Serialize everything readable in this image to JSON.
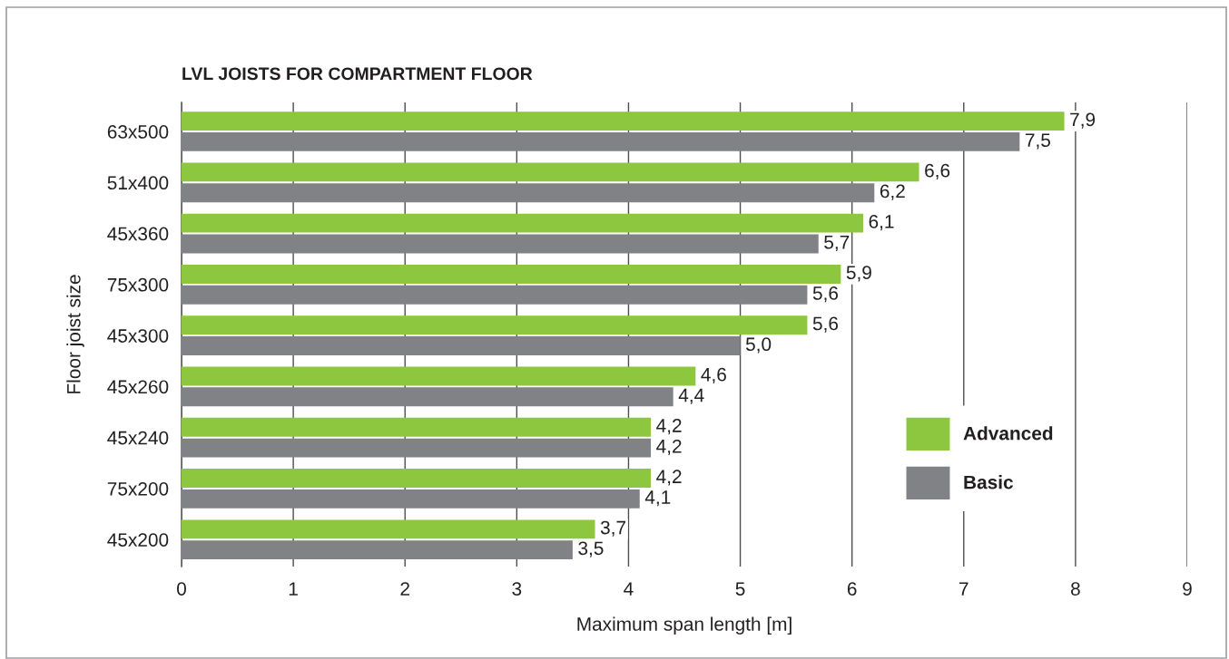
{
  "chart_data": {
    "type": "bar",
    "orientation": "horizontal",
    "title": "LVL JOISTS FOR COMPARTMENT FLOOR",
    "xlabel": "Maximum span length [m]",
    "ylabel": "Floor joist size",
    "categories": [
      "63x500",
      "51x400",
      "45x360",
      "75x300",
      "45x300",
      "45x260",
      "45x240",
      "75x200",
      "45x200"
    ],
    "series": [
      {
        "name": "Advanced",
        "color": "#8dc63f",
        "values": [
          7.9,
          6.6,
          6.1,
          5.9,
          5.6,
          4.6,
          4.2,
          4.2,
          3.7
        ],
        "value_labels": [
          "7,9",
          "6,6",
          "6,1",
          "5,9",
          "5,6",
          "4,6",
          "4,2",
          "4,2",
          "3,7"
        ]
      },
      {
        "name": "Basic",
        "color": "#808285",
        "values": [
          7.5,
          6.2,
          5.7,
          5.6,
          5.0,
          4.4,
          4.2,
          4.1,
          3.5
        ],
        "value_labels": [
          "7,5",
          "6,2",
          "5,7",
          "5,6",
          "5,0",
          "4,4",
          "4,2",
          "4,1",
          "3,5"
        ]
      }
    ],
    "xlim": [
      0,
      9
    ],
    "xticks": [
      0,
      1,
      2,
      3,
      4,
      5,
      6,
      7,
      8,
      9
    ],
    "grid": "x",
    "legend": "bottom right"
  }
}
